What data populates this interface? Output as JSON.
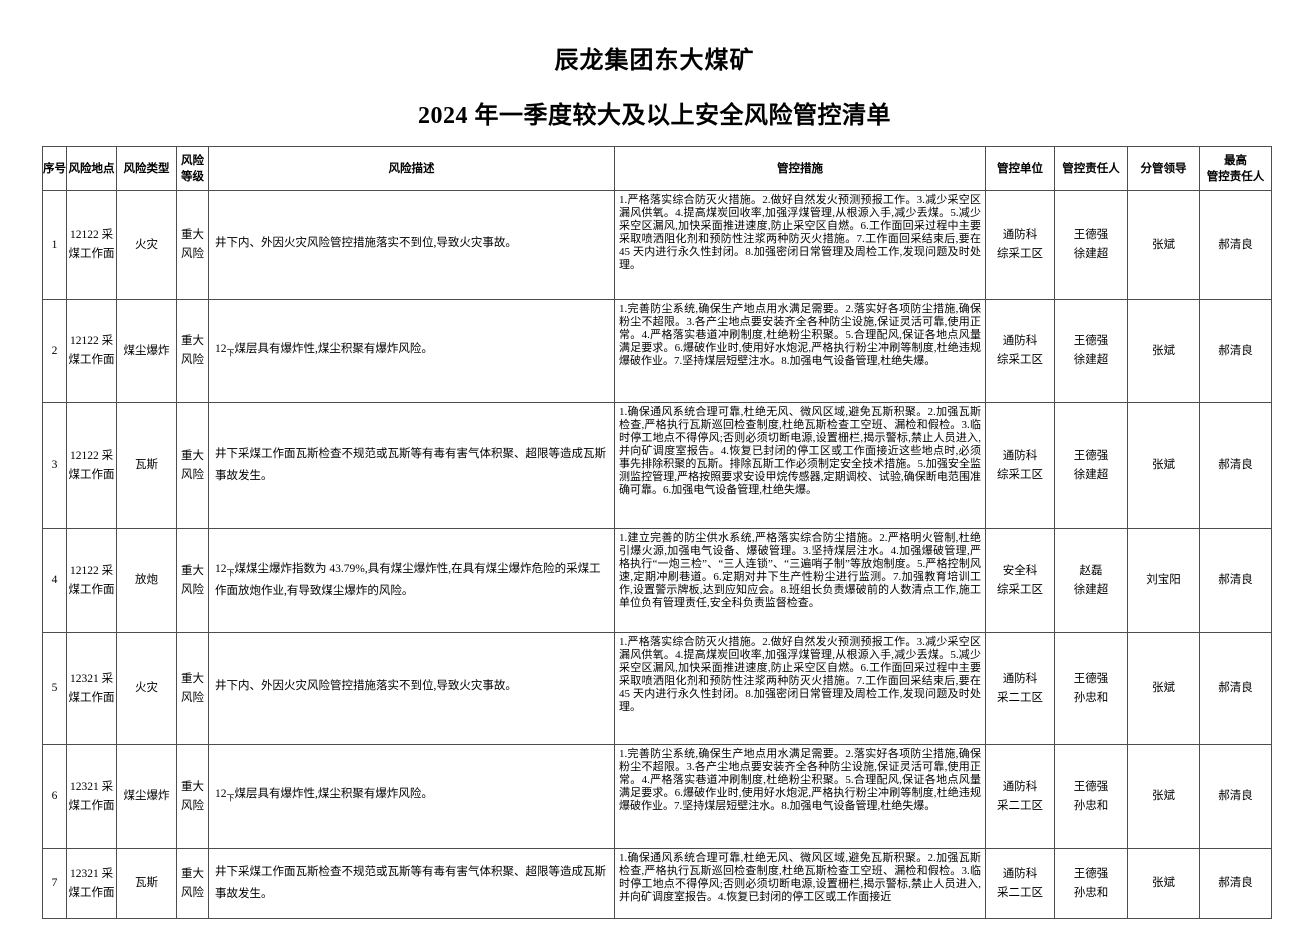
{
  "page": {
    "title1": "辰龙集团东大煤矿",
    "title2": "2024 年一季度较大及以上安全风险管控清单"
  },
  "headers": {
    "no": "序号",
    "location": "风险地点",
    "type": "风险类型",
    "level": "风险等级",
    "description": "风险描述",
    "measures": "管控措施",
    "unit": "管控单位",
    "responsible": "管控责任人",
    "leader": "分管领导",
    "top": "最高\n管控责任人"
  },
  "rows": [
    {
      "no": "1",
      "location": "12122 采煤工作面",
      "type": "火灾",
      "level": "重大风险",
      "desc_num": "",
      "desc_sub": "",
      "desc_text": "井下内、外因火灾风险管控措施落实不到位,导致火灾事故。",
      "measures": "1.严格落实综合防灭火措施。2.做好自然发火预测预报工作。3.减少采空区漏风供氧。4.提高煤炭回收率,加强浮煤管理,从根源入手,减少丢煤。5.减少采空区漏风,加快采面推进速度,防止采空区自燃。6.工作面回采过程中主要采取喷洒阻化剂和预防性注浆两种防灭火措施。7.工作面回采结束后,要在 45 天内进行永久性封闭。8.加强密闭日常管理及周检工作,发现问题及时处理。",
      "unit": "通防科\n综采工区",
      "responsible": "王德强\n徐建超",
      "leader": "张斌",
      "top_responsible": "郝清良"
    },
    {
      "no": "2",
      "location": "12122 采煤工作面",
      "type": "煤尘爆炸",
      "level": "重大风险",
      "desc_num": "12",
      "desc_sub": "下",
      "desc_text": "煤层具有爆炸性,煤尘积聚有爆炸风险。",
      "measures": "1.完善防尘系统,确保生产地点用水满足需要。2.落实好各项防尘措施,确保粉尘不超限。3.各产尘地点要安装齐全各种防尘设施,保证灵活可靠,使用正常。4.严格落实巷道冲刷制度,杜绝粉尘积聚。5.合理配风,保证各地点风量满足要求。6.爆破作业时,使用好水炮泥,严格执行粉尘冲刷等制度,杜绝违规爆破作业。7.坚持煤层短壁注水。8.加强电气设备管理,杜绝失爆。",
      "unit": "通防科\n综采工区",
      "responsible": "王德强\n徐建超",
      "leader": "张斌",
      "top_responsible": "郝清良"
    },
    {
      "no": "3",
      "location": "12122 采煤工作面",
      "type": "瓦斯",
      "level": "重大风险",
      "desc_num": "",
      "desc_sub": "",
      "desc_text": "井下采煤工作面瓦斯检查不规范或瓦斯等有毒有害气体积聚、超限等造成瓦斯事故发生。",
      "measures": "1.确保通风系统合理可靠,杜绝无风、微风区域,避免瓦斯积聚。2.加强瓦斯检查,严格执行瓦斯巡回检查制度,杜绝瓦斯检查工空班、漏检和假检。3.临时停工地点不得停风;否则必须切断电源,设置栅栏,揭示警标,禁止人员进入,并向矿调度室报告。4.恢复已封闭的停工区或工作面接近这些地点时,必须事先排除积聚的瓦斯。排除瓦斯工作必须制定安全技术措施。5.加强安全监测监控管理,严格按照要求安设甲烷传感器,定期调校、试验,确保断电范围准确可靠。6.加强电气设备管理,杜绝失爆。",
      "unit": "通防科\n综采工区",
      "responsible": "王德强\n徐建超",
      "leader": "张斌",
      "top_responsible": "郝清良"
    },
    {
      "no": "4",
      "location": "12122 采煤工作面",
      "type": "放炮",
      "level": "重大风险",
      "desc_num": "12",
      "desc_sub": "下",
      "desc_text": "煤煤尘爆炸指数为 43.79%,具有煤尘爆炸性,在具有煤尘爆炸危险的采煤工作面放炮作业,有导致煤尘爆炸的风险。",
      "measures": "1.建立完善的防尘供水系统,严格落实综合防尘措施。2.严格明火管制,杜绝引爆火源,加强电气设备、爆破管理。3.坚持煤层注水。4.加强爆破管理,严格执行“一炮三检”、“三人连锁”、“三遍哨子制”等放炮制度。5.严格控制风速,定期冲刷巷道。6.定期对井下生产性粉尘进行监测。7.加强教育培训工作,设置警示牌板,达到应知应会。8.班组长负责爆破前的人数清点工作,施工单位负有管理责任,安全科负责监督检查。",
      "unit": "安全科\n综采工区",
      "responsible": "赵磊\n徐建超",
      "leader": "刘宝阳",
      "top_responsible": "郝清良"
    },
    {
      "no": "5",
      "location": "12321 采煤工作面",
      "type": "火灾",
      "level": "重大风险",
      "desc_num": "",
      "desc_sub": "",
      "desc_text": "井下内、外因火灾风险管控措施落实不到位,导致火灾事故。",
      "measures": "1.严格落实综合防灭火措施。2.做好自然发火预测预报工作。3.减少采空区漏风供氧。4.提高煤炭回收率,加强浮煤管理,从根源入手,减少丢煤。5.减少采空区漏风,加快采面推进速度,防止采空区自燃。6.工作面回采过程中主要采取喷洒阻化剂和预防性注浆两种防灭火措施。7.工作面回采结束后,要在 45 天内进行永久性封闭。8.加强密闭日常管理及周检工作,发现问题及时处理。",
      "unit": "通防科\n采二工区",
      "responsible": "王德强\n孙忠和",
      "leader": "张斌",
      "top_responsible": "郝清良"
    },
    {
      "no": "6",
      "location": "12321 采煤工作面",
      "type": "煤尘爆炸",
      "level": "重大风险",
      "desc_num": "12",
      "desc_sub": "下",
      "desc_text": "煤层具有爆炸性,煤尘积聚有爆炸风险。",
      "measures": "1.完善防尘系统,确保生产地点用水满足需要。2.落实好各项防尘措施,确保粉尘不超限。3.各产尘地点要安装齐全各种防尘设施,保证灵活可靠,使用正常。4.严格落实巷道冲刷制度,杜绝粉尘积聚。5.合理配风,保证各地点风量满足要求。6.爆破作业时,使用好水炮泥,严格执行粉尘冲刷等制度,杜绝违规爆破作业。7.坚持煤层短壁注水。8.加强电气设备管理,杜绝失爆。",
      "unit": "通防科\n采二工区",
      "responsible": "王德强\n孙忠和",
      "leader": "张斌",
      "top_responsible": "郝清良"
    },
    {
      "no": "7",
      "location": "12321 采煤工作面",
      "type": "瓦斯",
      "level": "重大风险",
      "desc_num": "",
      "desc_sub": "",
      "desc_text": "井下采煤工作面瓦斯检查不规范或瓦斯等有毒有害气体积聚、超限等造成瓦斯事故发生。",
      "measures": "1.确保通风系统合理可靠,杜绝无风、微风区域,避免瓦斯积聚。2.加强瓦斯检查,严格执行瓦斯巡回检查制度,杜绝瓦斯检查工空班、漏检和假检。3.临时停工地点不得停风;否则必须切断电源,设置栅栏,揭示警标,禁止人员进入,并向矿调度室报告。4.恢复已封闭的停工区或工作面接近",
      "unit": "通防科\n采二工区",
      "responsible": "王德强\n孙忠和",
      "leader": "张斌",
      "top_responsible": "郝清良"
    }
  ]
}
